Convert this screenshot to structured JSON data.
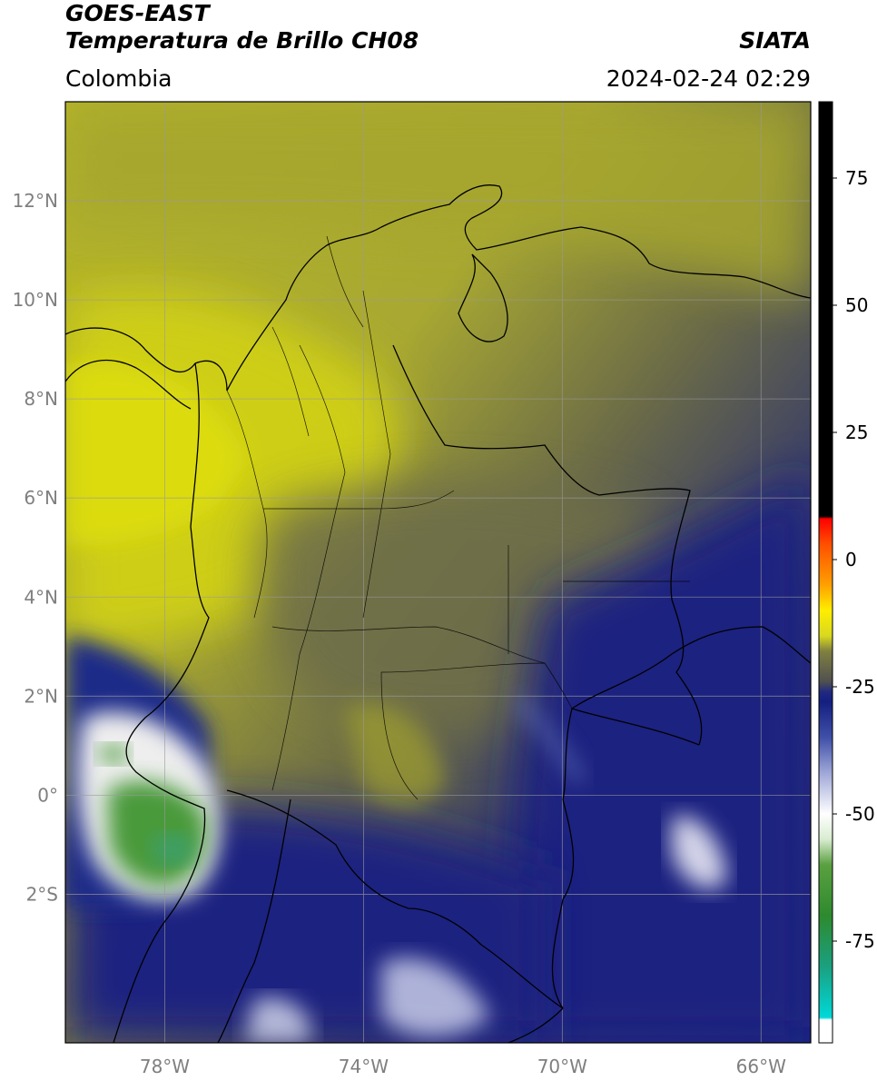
{
  "header": {
    "satellite": "GOES-EAST",
    "product": "Temperatura de Brillo CH08",
    "region": "Colombia",
    "agency": "SIATA",
    "timestamp": "2024-02-24 02:29"
  },
  "map": {
    "lat_ticks": [
      "12°N",
      "10°N",
      "8°N",
      "6°N",
      "4°N",
      "2°N",
      "0°",
      "2°S"
    ],
    "lon_ticks": [
      "78°W",
      "74°W",
      "70°W",
      "66°W"
    ],
    "lat_values": [
      12,
      10,
      8,
      6,
      4,
      2,
      0,
      -2
    ],
    "lon_values": [
      -78,
      -74,
      -70,
      -66
    ],
    "extent": {
      "lon_min": -80,
      "lon_max": -65,
      "lat_min": -5,
      "lat_max": 14
    },
    "grid": true
  },
  "colorbar": {
    "ticks": [
      "75",
      "50",
      "25",
      "0",
      "-25",
      "-50",
      "-75"
    ],
    "tick_values": [
      75,
      50,
      25,
      0,
      -25,
      -50,
      -75
    ],
    "range": [
      -95,
      90
    ],
    "stops": [
      {
        "v": -95,
        "c": "#ffffff"
      },
      {
        "v": -90.5,
        "c": "#ffffff"
      },
      {
        "v": -90,
        "c": "#00d8d8"
      },
      {
        "v": -80,
        "c": "#1aa080"
      },
      {
        "v": -70,
        "c": "#2e8a2e"
      },
      {
        "v": -60,
        "c": "#5aa040"
      },
      {
        "v": -55,
        "c": "#d8ecd0"
      },
      {
        "v": -50,
        "c": "#ffffff"
      },
      {
        "v": -42,
        "c": "#a0a8d8"
      },
      {
        "v": -35,
        "c": "#4050a8"
      },
      {
        "v": -28,
        "c": "#141f80"
      },
      {
        "v": -26,
        "c": "#202a80"
      },
      {
        "v": -24,
        "c": "#505050"
      },
      {
        "v": -18,
        "c": "#808040"
      },
      {
        "v": -15,
        "c": "#d8d820"
      },
      {
        "v": -10,
        "c": "#ffee00"
      },
      {
        "v": -5,
        "c": "#ffa000"
      },
      {
        "v": 3,
        "c": "#ff5000"
      },
      {
        "v": 8,
        "c": "#ff0000"
      },
      {
        "v": 8.5,
        "c": "#000000"
      },
      {
        "v": 90,
        "c": "#000000"
      }
    ]
  },
  "colors": {
    "yellow_cloudfree": "#c8c82a",
    "olive": "#8a8a3a",
    "dark_gray": "#555550",
    "navy": "#1a2480",
    "cold_cloud_white": "#f0f0f0",
    "cold_core_green": "#3a8a30"
  }
}
